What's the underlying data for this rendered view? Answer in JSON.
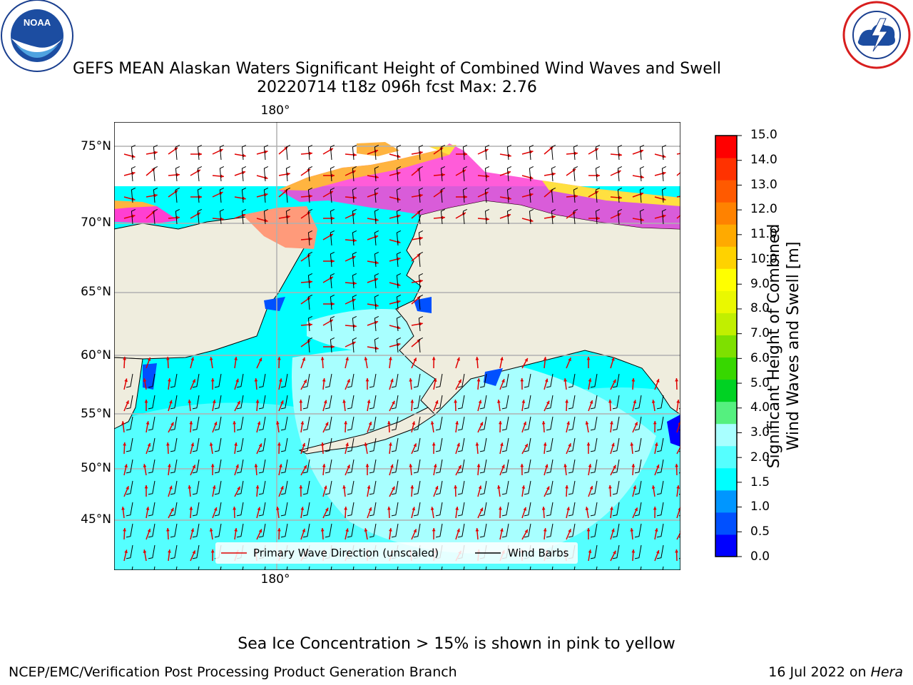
{
  "title": {
    "line1": "GEFS MEAN Alaskan Waters Significant Height of Combined Wind Waves and Swell",
    "line2": "20220714 t18z 096h fcst   Max: 2.76"
  },
  "logos": {
    "noaa": {
      "text": "NOAA",
      "ring_text": "NATIONAL OCEANIC AND ATMOSPHERIC ADMINISTRATION · U.S. DEPARTMENT OF COMMERCE"
    },
    "nws": {
      "ring_text": "NATIONAL WEATHER SERVICE"
    }
  },
  "map": {
    "lat_labels": [
      "75°N",
      "70°N",
      "65°N",
      "60°N",
      "55°N",
      "50°N",
      "45°N"
    ],
    "lon_label_top": "180°",
    "lon_label_bottom": "180°",
    "legend": {
      "wave_direction": "Primary Wave Direction (unscaled)",
      "wind_barbs": "Wind Barbs"
    },
    "colors": {
      "land": "#efedde",
      "ocean_low": "#00ffff",
      "ocean_mid": "#55ffff",
      "ocean_high": "#a8ffff",
      "ice_pink": "#ff3fd2",
      "ice_orange": "#ffb440",
      "ice_yellow": "#ffe040",
      "arrow": "#e00000"
    }
  },
  "colorbar": {
    "label_line1": "Significant Height of Combined",
    "label_line2": "Wind Waves and Swell [m]",
    "ticks": [
      "15.0",
      "14.0",
      "13.0",
      "12.0",
      "11.0",
      "10.0",
      "9.0",
      "8.0",
      "7.0",
      "6.0",
      "5.0",
      "4.0",
      "3.0",
      "2.0",
      "1.5",
      "1.0",
      "0.5",
      "0.0"
    ],
    "colors": [
      "#0000ff",
      "#0050ff",
      "#0096ff",
      "#00ffff",
      "#55ffff",
      "#a8ffff",
      "#55f07f",
      "#00d223",
      "#37d700",
      "#7ee000",
      "#c1ef00",
      "#eaf800",
      "#ffff00",
      "#ffd200",
      "#ffaa00",
      "#ff8200",
      "#ff5a00",
      "#ff3200",
      "#ff0000"
    ]
  },
  "caption": "Sea Ice Concentration > 15% is shown in pink to yellow",
  "footer": {
    "left": "NCEP/EMC/Verification Post Processing Product Generation Branch",
    "date": "16 Jul 2022 on ",
    "host": "Hera"
  }
}
